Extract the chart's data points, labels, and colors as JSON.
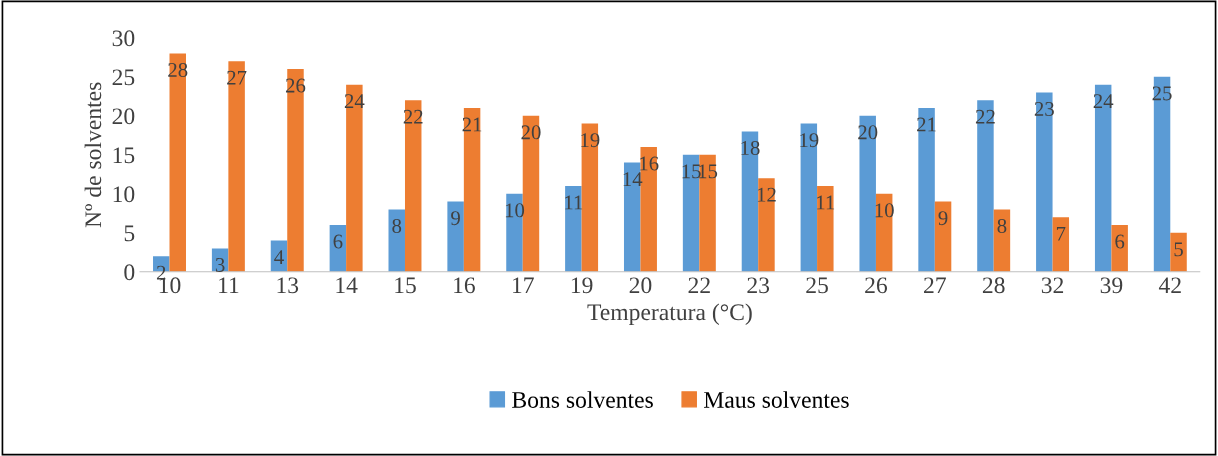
{
  "chart_data": {
    "type": "bar",
    "xlabel": "Temperatura (°C)",
    "ylabel": "Nº de solventes",
    "categories": [
      "10",
      "11",
      "13",
      "14",
      "15",
      "16",
      "17",
      "19",
      "20",
      "22",
      "23",
      "25",
      "26",
      "27",
      "28",
      "32",
      "39",
      "42"
    ],
    "series": [
      {
        "name": "Bons solventes",
        "color": "#5b9bd5",
        "values": [
          2,
          3,
          4,
          6,
          8,
          9,
          10,
          11,
          14,
          15,
          18,
          19,
          20,
          21,
          22,
          23,
          24,
          25
        ]
      },
      {
        "name": "Maus solventes",
        "color": "#ed7d31",
        "values": [
          28,
          27,
          26,
          24,
          22,
          21,
          20,
          19,
          16,
          15,
          12,
          11,
          10,
          9,
          8,
          7,
          6,
          5
        ]
      }
    ],
    "ylim": [
      0,
      30
    ],
    "yticks": [
      0,
      5,
      10,
      15,
      20,
      25,
      30
    ],
    "data_labels": true,
    "grid": false,
    "legend": "bottom"
  }
}
